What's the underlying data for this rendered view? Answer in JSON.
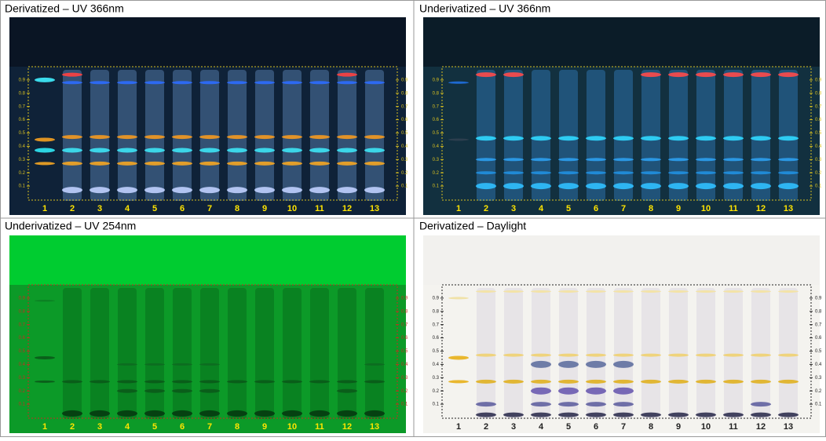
{
  "panels": [
    {
      "title": "Derivatized – UV 366nm"
    },
    {
      "title": "Underivatized – UV 366nm"
    },
    {
      "title": "Underivatized – UV 254nm"
    },
    {
      "title": "Derivatized – Daylight"
    }
  ],
  "lanes": [
    "1",
    "2",
    "3",
    "4",
    "5",
    "6",
    "7",
    "8",
    "9",
    "10",
    "11",
    "12",
    "13"
  ],
  "rf_ticks": [
    0.1,
    0.2,
    0.3,
    0.4,
    0.5,
    0.6,
    0.7,
    0.8,
    0.9
  ]
}
